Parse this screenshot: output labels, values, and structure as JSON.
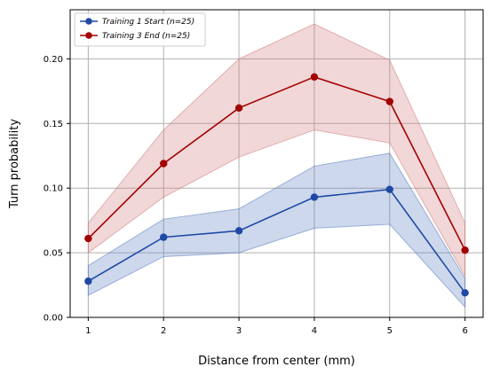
{
  "chart_data": {
    "type": "line",
    "title": "",
    "xlabel": "Distance from center (mm)",
    "ylabel": "Turn probability",
    "x": [
      1,
      2,
      3,
      4,
      5,
      6
    ],
    "xlim": [
      0.76,
      6.24
    ],
    "ylim": [
      0,
      0.238
    ],
    "xticks": [
      1,
      2,
      3,
      4,
      5,
      6
    ],
    "yticks": [
      0.0,
      0.05,
      0.1,
      0.15,
      0.2
    ],
    "grid": true,
    "legend_position": "top-left",
    "series": [
      {
        "name": "Training 1 Start (n=25)",
        "color": "#1f49a5",
        "band_color": "#5a7dbf",
        "values": [
          0.028,
          0.062,
          0.067,
          0.093,
          0.099,
          0.019
        ],
        "lower": [
          0.017,
          0.047,
          0.05,
          0.069,
          0.072,
          0.008
        ],
        "upper": [
          0.04,
          0.076,
          0.084,
          0.117,
          0.127,
          0.03
        ]
      },
      {
        "name": "Training 3 End (n=25)",
        "color": "#a30000",
        "band_color": "#d07a7a",
        "values": [
          0.061,
          0.119,
          0.162,
          0.186,
          0.167,
          0.052
        ],
        "lower": [
          0.05,
          0.093,
          0.124,
          0.145,
          0.135,
          0.032
        ],
        "upper": [
          0.073,
          0.145,
          0.2,
          0.227,
          0.199,
          0.073
        ]
      }
    ]
  }
}
